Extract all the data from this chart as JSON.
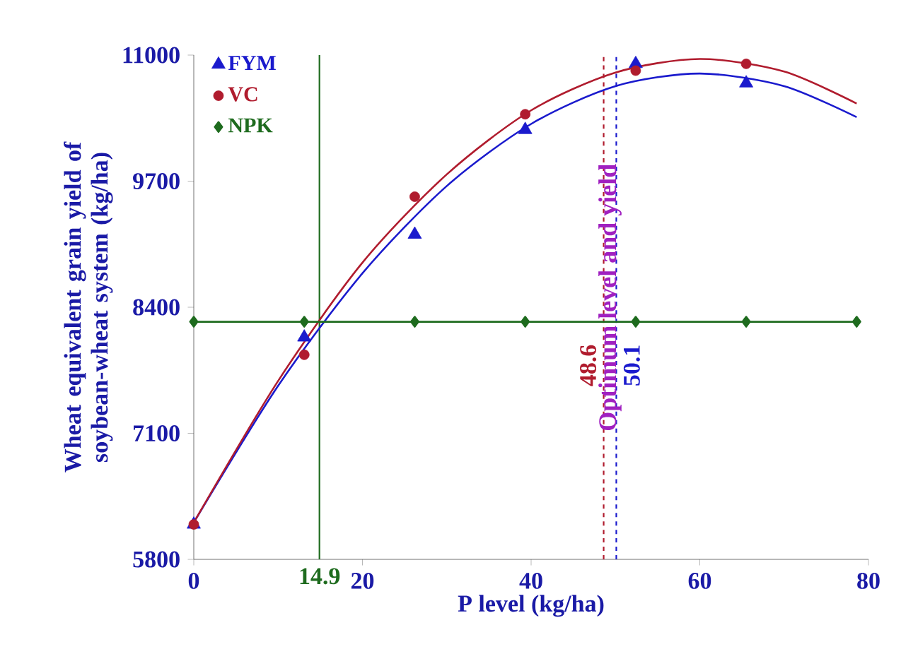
{
  "chart_data": {
    "type": "scatter",
    "xlabel": "P level (kg/ha)",
    "ylabel": "Wheat equivalent grain yield of soybean-wheat system (kg/ha)",
    "xlim": [
      0,
      80
    ],
    "xticks": [
      0,
      20,
      40,
      60,
      80
    ],
    "ylim": [
      5800,
      11000
    ],
    "yticks": [
      5800,
      7100,
      8400,
      9700,
      11000
    ],
    "grid": false,
    "legend": "top left",
    "series": [
      {
        "type": "line",
        "color": "#1a1acd",
        "marker": "none",
        "x": [
          0,
          10,
          20,
          30,
          40,
          50,
          60,
          70,
          78.6
        ],
        "values": [
          6180,
          7590,
          8750,
          9650,
          10290,
          10680,
          10810,
          10680,
          10360
        ]
      },
      {
        "type": "line",
        "color": "#b01c2e",
        "marker": "none",
        "x": [
          0,
          10,
          20,
          30,
          40,
          50,
          60,
          70,
          78.6
        ],
        "values": [
          6180,
          7640,
          8860,
          9770,
          10430,
          10820,
          10960,
          10830,
          10500
        ]
      },
      {
        "name": "FYM",
        "color": "#1a1acd",
        "marker": "triangle",
        "x": [
          0,
          13.1,
          26.2,
          39.3,
          52.4,
          65.5
        ],
        "values": [
          6160,
          8090,
          9150,
          10230,
          10910,
          10710
        ]
      },
      {
        "name": "VC",
        "color": "#b01c2e",
        "marker": "circle",
        "x": [
          0,
          13.1,
          26.2,
          39.3,
          52.4,
          65.5
        ],
        "values": [
          6160,
          7910,
          9540,
          10390,
          10840,
          10910
        ]
      },
      {
        "name": "NPK",
        "type": "line",
        "color": "#1e6b1e",
        "marker": "diamond",
        "x": [
          0,
          13.1,
          26.2,
          39.3,
          52.4,
          65.5,
          78.6
        ],
        "values": [
          8250,
          8250,
          8250,
          8250,
          8250,
          8250,
          8250
        ]
      }
    ],
    "ref_lines": [
      {
        "axis": "x",
        "value": 14.9,
        "label": "14.9",
        "color": "#1e6b1e",
        "line_style": "solid"
      },
      {
        "axis": "x",
        "value": 48.6,
        "label": "48.6",
        "color": "#b01c2e",
        "line_style": "dashed"
      },
      {
        "axis": "x",
        "value": 50.1,
        "label": "50.1",
        "color": "#1a1acd",
        "line_style": "dashed"
      }
    ],
    "annotations": [
      {
        "text": "Optimum level and yield",
        "x": 49.35,
        "y": 8500
      }
    ]
  }
}
